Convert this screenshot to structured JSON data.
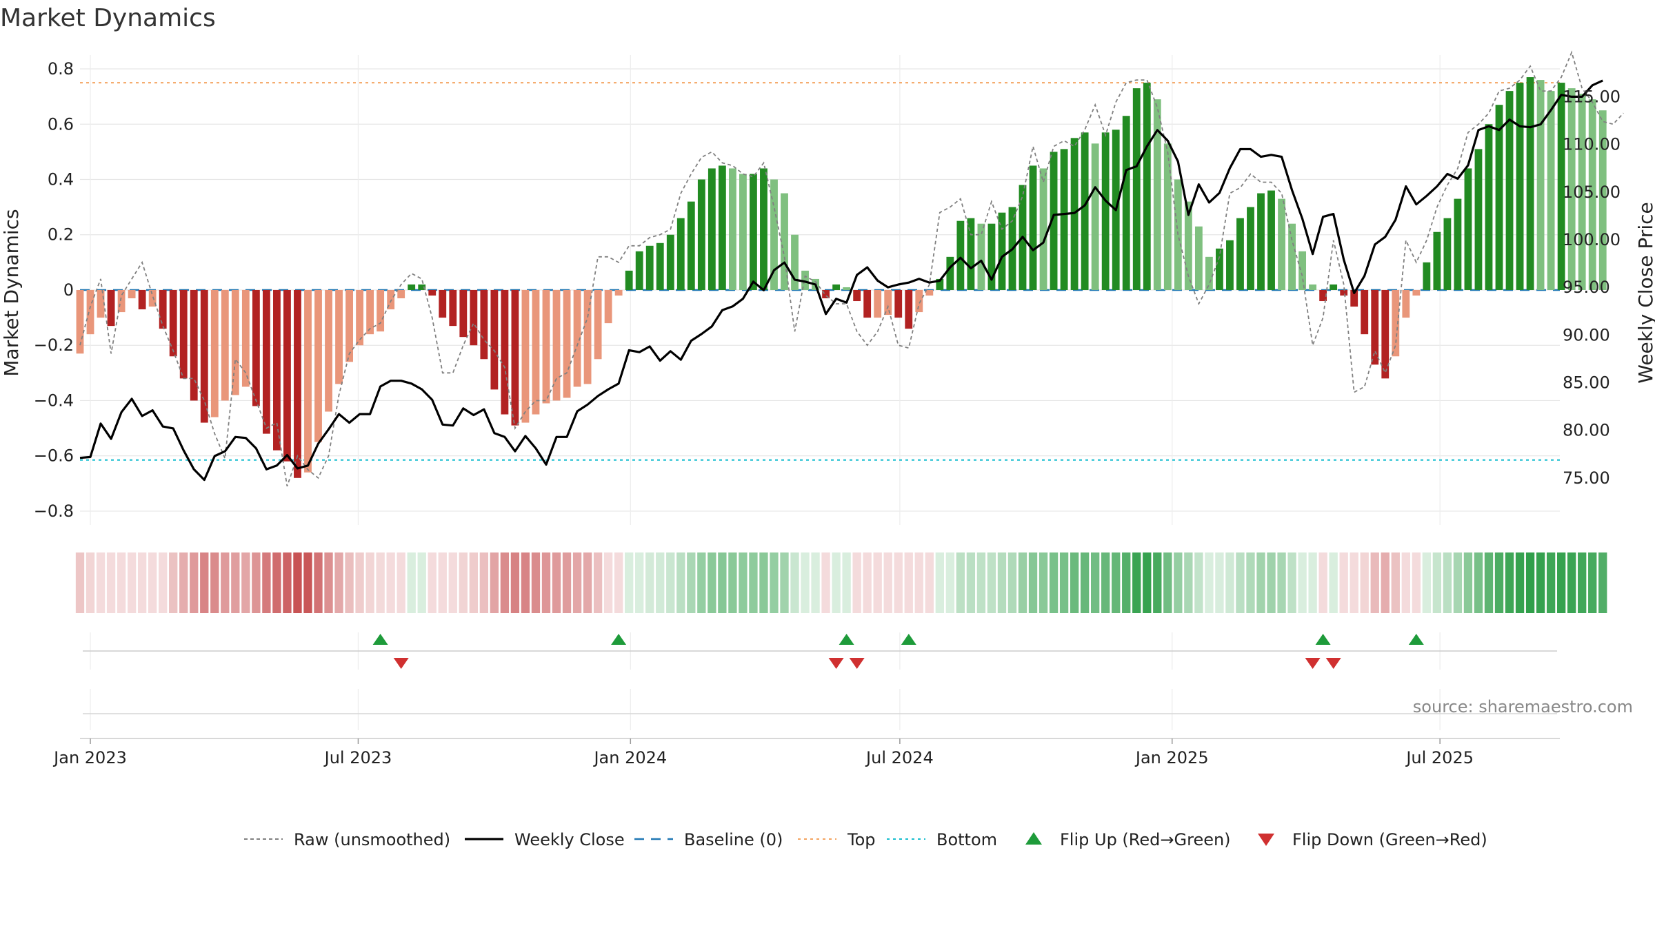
{
  "chart_data": {
    "type": "bar",
    "title": "Market Dynamics",
    "y_left_label": "Market Dynamics",
    "y_right_label": "Weekly Close Price",
    "source": "source: sharemaestro.com",
    "x_range": [
      "2022-12-25",
      "2025-09-20"
    ],
    "y_left_range": [
      -0.85,
      0.82
    ],
    "y_right_range": [
      70.07,
      118.5
    ],
    "y_left_ticks": [
      {
        "value": 0.8,
        "label": "0.8"
      },
      {
        "value": 0.6,
        "label": "0.6"
      },
      {
        "value": 0.4,
        "label": "0.4"
      },
      {
        "value": 0.2,
        "label": "0.2"
      },
      {
        "value": 0,
        "label": "0"
      },
      {
        "value": -0.2,
        "label": "−0.2"
      },
      {
        "value": -0.4,
        "label": "−0.4"
      },
      {
        "value": -0.6,
        "label": "−0.6"
      },
      {
        "value": -0.8,
        "label": "−0.8"
      }
    ],
    "y_right_ticks": [
      {
        "value": 115,
        "label": "115.00"
      },
      {
        "value": 110,
        "label": "110.00"
      },
      {
        "value": 105,
        "label": "105.00"
      },
      {
        "value": 100,
        "label": "100.00"
      },
      {
        "value": 95,
        "label": "95.00"
      },
      {
        "value": 90,
        "label": "90.00"
      },
      {
        "value": 85,
        "label": "85.00"
      },
      {
        "value": 80,
        "label": "80.00"
      },
      {
        "value": 75,
        "label": "75.00"
      }
    ],
    "x_ticks": [
      {
        "date": "2023-01-01",
        "label": "Jan 2023"
      },
      {
        "date": "2023-07-01",
        "label": "Jul 2023"
      },
      {
        "date": "2024-01-01",
        "label": "Jan 2024"
      },
      {
        "date": "2024-07-01",
        "label": "Jul 2024"
      },
      {
        "date": "2025-01-01",
        "label": "Jan 2025"
      },
      {
        "date": "2025-07-01",
        "label": "Jul 2025"
      }
    ],
    "top_level": 0.75,
    "bottom_level": -0.615,
    "weeks_start": "2022-12-25",
    "weeks_step_days": 7,
    "smoothed": [
      -0.23,
      -0.16,
      -0.1,
      -0.13,
      -0.08,
      -0.03,
      -0.07,
      -0.06,
      -0.14,
      -0.24,
      -0.32,
      -0.4,
      -0.48,
      -0.46,
      -0.4,
      -0.38,
      -0.35,
      -0.42,
      -0.52,
      -0.58,
      -0.62,
      -0.68,
      -0.66,
      -0.55,
      -0.44,
      -0.34,
      -0.26,
      -0.2,
      -0.16,
      -0.15,
      -0.07,
      -0.03,
      0.02,
      0.02,
      -0.02,
      -0.1,
      -0.13,
      -0.17,
      -0.2,
      -0.25,
      -0.36,
      -0.45,
      -0.49,
      -0.48,
      -0.45,
      -0.41,
      -0.4,
      -0.39,
      -0.35,
      -0.34,
      -0.25,
      -0.12,
      -0.02,
      0.07,
      0.14,
      0.16,
      0.17,
      0.2,
      0.26,
      0.32,
      0.4,
      0.44,
      0.45,
      0.44,
      0.42,
      0.42,
      0.44,
      0.4,
      0.35,
      0.2,
      0.07,
      0.04,
      -0.03,
      0.02,
      0.01,
      -0.04,
      -0.1,
      -0.1,
      -0.09,
      -0.1,
      -0.14,
      -0.08,
      -0.02,
      0.04,
      0.12,
      0.25,
      0.26,
      0.24,
      0.24,
      0.28,
      0.3,
      0.38,
      0.45,
      0.44,
      0.5,
      0.51,
      0.55,
      0.57,
      0.53,
      0.57,
      0.58,
      0.63,
      0.73,
      0.75,
      0.69,
      0.53,
      0.4,
      0.32,
      0.23,
      0.12,
      0.15,
      0.18,
      0.26,
      0.3,
      0.35,
      0.36,
      0.33,
      0.24,
      0.14,
      0.02,
      -0.04,
      0.02,
      -0.02,
      -0.06,
      -0.16,
      -0.27,
      -0.32,
      -0.24,
      -0.1,
      -0.02,
      0.1,
      0.21,
      0.26,
      0.33,
      0.44,
      0.51,
      0.6,
      0.67,
      0.72,
      0.75,
      0.77,
      0.76,
      0.72,
      0.75,
      0.73,
      0.71,
      0.69,
      0.65
    ],
    "raw": [
      -0.2,
      -0.06,
      0.04,
      -0.23,
      -0.02,
      0.04,
      0.1,
      -0.02,
      -0.13,
      -0.22,
      -0.32,
      -0.32,
      -0.4,
      -0.52,
      -0.61,
      -0.25,
      -0.3,
      -0.4,
      -0.5,
      -0.48,
      -0.71,
      -0.6,
      -0.65,
      -0.68,
      -0.6,
      -0.38,
      -0.23,
      -0.18,
      -0.14,
      -0.12,
      -0.04,
      0.02,
      0.06,
      0.04,
      -0.1,
      -0.3,
      -0.3,
      -0.2,
      -0.12,
      -0.18,
      -0.22,
      -0.28,
      -0.5,
      -0.44,
      -0.4,
      -0.4,
      -0.32,
      -0.3,
      -0.2,
      -0.1,
      0.12,
      0.12,
      0.1,
      0.16,
      0.16,
      0.19,
      0.2,
      0.22,
      0.35,
      0.42,
      0.48,
      0.5,
      0.46,
      0.45,
      0.42,
      0.41,
      0.46,
      0.3,
      0.12,
      -0.15,
      0.05,
      0.03,
      -0.02,
      -0.05,
      -0.05,
      -0.15,
      -0.2,
      -0.15,
      -0.06,
      -0.2,
      -0.21,
      -0.05,
      0.02,
      0.28,
      0.3,
      0.33,
      0.2,
      0.2,
      0.32,
      0.22,
      0.25,
      0.34,
      0.52,
      0.39,
      0.52,
      0.54,
      0.52,
      0.58,
      0.67,
      0.56,
      0.68,
      0.75,
      0.76,
      0.76,
      0.66,
      0.5,
      0.2,
      0.05,
      -0.05,
      0.02,
      0.12,
      0.35,
      0.37,
      0.42,
      0.39,
      0.39,
      0.35,
      0.18,
      0.05,
      -0.2,
      -0.1,
      0.18,
      0.02,
      -0.37,
      -0.35,
      -0.22,
      -0.3,
      -0.2,
      0.18,
      0.1,
      0.18,
      0.3,
      0.38,
      0.44,
      0.57,
      0.6,
      0.64,
      0.72,
      0.73,
      0.76,
      0.81,
      0.72,
      0.72,
      0.77,
      0.86,
      0.73,
      0.68,
      0.61,
      0.6,
      0.64
    ],
    "weekly_close": [
      77.1,
      77.2,
      80.7,
      79.1,
      81.9,
      83.3,
      81.5,
      82.1,
      80.4,
      80.2,
      77.9,
      75.9,
      74.8,
      77.3,
      77.8,
      79.3,
      79.2,
      78.1,
      75.9,
      76.3,
      77.4,
      76.0,
      76.3,
      78.6,
      80.1,
      81.7,
      80.8,
      81.7,
      81.7,
      84.6,
      85.2,
      85.2,
      84.9,
      84.3,
      83.2,
      80.6,
      80.5,
      82.3,
      81.6,
      82.2,
      79.7,
      79.3,
      77.8,
      79.4,
      78.1,
      76.4,
      79.3,
      79.3,
      82.0,
      82.7,
      83.6,
      84.3,
      84.9,
      88.4,
      88.2,
      88.8,
      87.3,
      88.3,
      87.4,
      89.4,
      90.1,
      90.9,
      92.6,
      93.0,
      93.8,
      95.6,
      94.7,
      96.8,
      97.6,
      95.8,
      95.6,
      95.3,
      92.2,
      93.8,
      93.4,
      96.3,
      97.1,
      95.7,
      95.0,
      95.3,
      95.5,
      95.9,
      95.5,
      95.7,
      97.1,
      98.1,
      97.0,
      97.8,
      95.8,
      98.2,
      99.0,
      100.3,
      98.9,
      99.7,
      102.6,
      102.7,
      102.8,
      103.6,
      105.5,
      104.1,
      103.1,
      107.3,
      107.7,
      109.8,
      111.5,
      110.4,
      108.2,
      102.6,
      105.8,
      103.9,
      104.9,
      107.5,
      109.5,
      109.5,
      108.7,
      108.9,
      108.7,
      105.2,
      102.2,
      98.5,
      102.4,
      102.7,
      97.9,
      94.4,
      96.2,
      99.5,
      100.3,
      102.1,
      105.6,
      103.7,
      104.6,
      105.6,
      106.9,
      106.4,
      107.8,
      111.5,
      111.9,
      111.5,
      112.6,
      111.9,
      111.8,
      112.1,
      113.6,
      115.2,
      115.0,
      115.0,
      116.2,
      116.7
    ],
    "flip_up": [
      "2023-07-16",
      "2023-12-24",
      "2024-05-26",
      "2024-07-07",
      "2025-04-13",
      "2025-06-15"
    ],
    "flip_down": [
      "2023-07-30",
      "2024-05-19",
      "2024-06-02",
      "2025-04-06",
      "2025-04-20"
    ],
    "legend": [
      {
        "key": "raw",
        "label": "Raw (unsmoothed)",
        "style": "dash-gray"
      },
      {
        "key": "close",
        "label": "Weekly Close",
        "style": "solid-black"
      },
      {
        "key": "baseline",
        "label": "Baseline (0)",
        "style": "dash-blue"
      },
      {
        "key": "top",
        "label": "Top",
        "style": "dot-orange"
      },
      {
        "key": "bottom",
        "label": "Bottom",
        "style": "dot-cyan"
      },
      {
        "key": "flipup",
        "label": "Flip Up (Red→Green)",
        "style": "triangle-up-green"
      },
      {
        "key": "flipdown",
        "label": "Flip Down (Green→Red)",
        "style": "triangle-down-red"
      }
    ],
    "colors": {
      "green_strong": "#228b22",
      "green_light": "#7fc07f",
      "red_strong": "#b22222",
      "red_light": "#e9967a",
      "raw_line": "#808080",
      "close_line": "#000000",
      "baseline": "#1f77b4",
      "top_line": "#f4a460",
      "bottom_line": "#17becf",
      "flip_up": "#1e9b3a",
      "flip_down": "#d03030"
    },
    "legend_position": "bottom-center",
    "grid": true
  }
}
